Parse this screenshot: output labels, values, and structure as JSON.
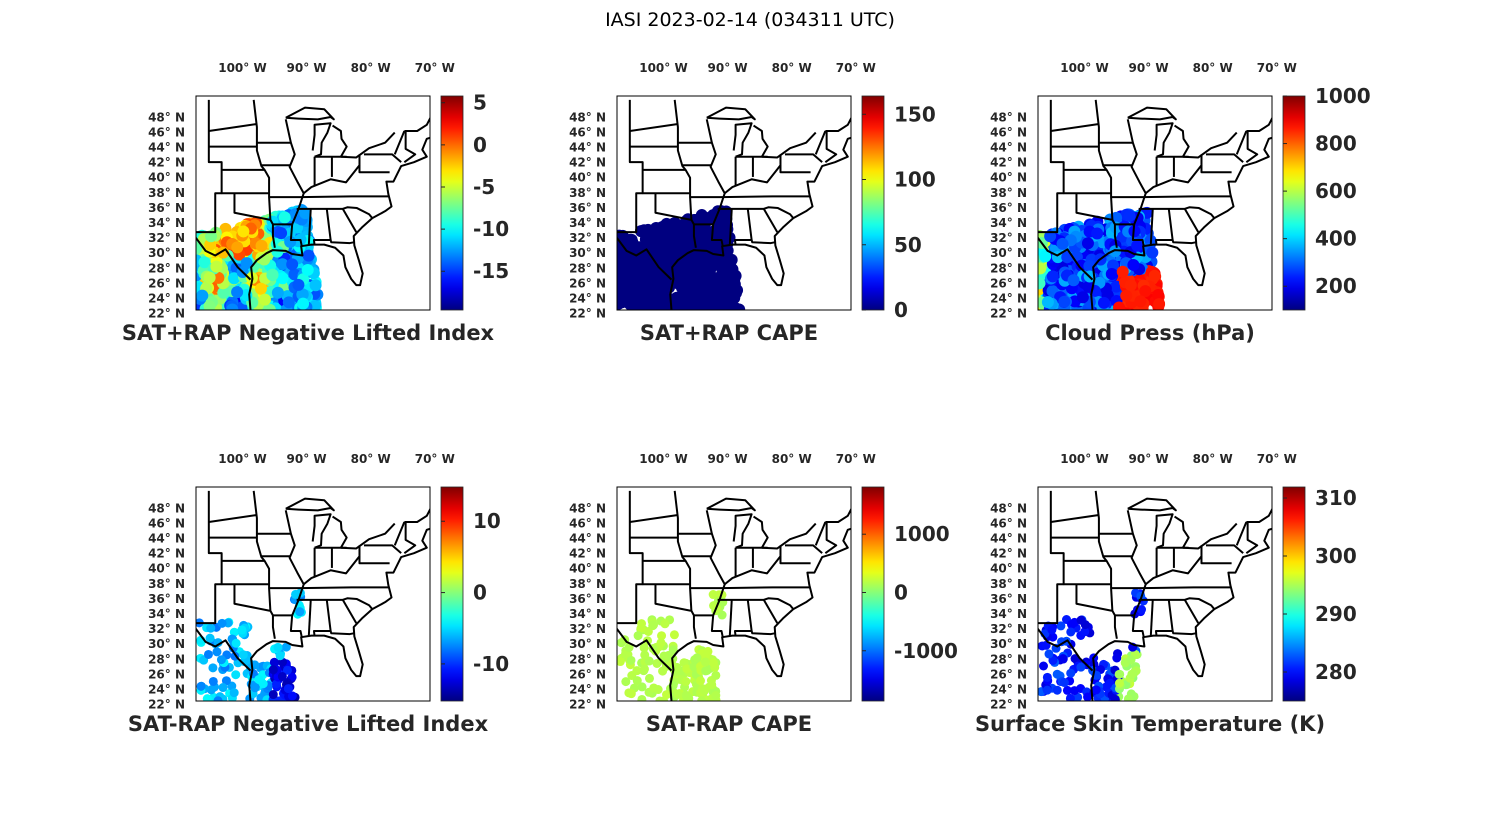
{
  "title": "IASI 2023-02-14 (034311 UTC)",
  "colormap": "jet",
  "map_border_color": "#000000",
  "chart_data": [
    {
      "type": "map",
      "title": "SAT+RAP Negative Lifted Index",
      "lon_ticks": [
        "100° W",
        "90° W",
        "80° W",
        "70° W"
      ],
      "lat_ticks": [
        "48° N",
        "46° N",
        "44° N",
        "42° N",
        "40° N",
        "38° N",
        "36° N",
        "34° N",
        "32° N",
        "30° N",
        "28° N",
        "26° N",
        "24° N",
        "22° N"
      ],
      "colorbar": {
        "ticks": [
          5,
          0,
          -5,
          -10,
          -15
        ],
        "range": [
          -19.6,
          5.8
        ]
      }
    },
    {
      "type": "map",
      "title": "SAT+RAP CAPE",
      "lon_ticks": [
        "100° W",
        "90° W",
        "80° W",
        "70° W"
      ],
      "lat_ticks": [
        "48° N",
        "46° N",
        "44° N",
        "42° N",
        "40° N",
        "38° N",
        "36° N",
        "34° N",
        "32° N",
        "30° N",
        "28° N",
        "26° N",
        "24° N",
        "22° N"
      ],
      "colorbar": {
        "ticks": [
          150,
          100,
          50,
          0
        ],
        "range": [
          0,
          164
        ]
      }
    },
    {
      "type": "map",
      "title": "Cloud Press (hPa)",
      "lon_ticks": [
        "100° W",
        "90° W",
        "80° W",
        "70° W"
      ],
      "lat_ticks": [
        "48° N",
        "46° N",
        "44° N",
        "42° N",
        "40° N",
        "38° N",
        "36° N",
        "34° N",
        "32° N",
        "30° N",
        "28° N",
        "26° N",
        "24° N",
        "22° N"
      ],
      "colorbar": {
        "ticks": [
          1000,
          800,
          600,
          400,
          200
        ],
        "range": [
          100,
          1000
        ]
      }
    },
    {
      "type": "map",
      "title": "SAT-RAP Negative Lifted Index",
      "lon_ticks": [
        "100° W",
        "90° W",
        "80° W",
        "70° W"
      ],
      "lat_ticks": [
        "48° N",
        "46° N",
        "44° N",
        "42° N",
        "40° N",
        "38° N",
        "36° N",
        "34° N",
        "32° N",
        "30° N",
        "28° N",
        "26° N",
        "24° N",
        "22° N"
      ],
      "colorbar": {
        "ticks": [
          10,
          0,
          -10
        ],
        "range": [
          -15.2,
          14.8
        ]
      }
    },
    {
      "type": "map",
      "title": "SAT-RAP CAPE",
      "lon_ticks": [
        "100° W",
        "90° W",
        "80° W",
        "70° W"
      ],
      "lat_ticks": [
        "48° N",
        "46° N",
        "44° N",
        "42° N",
        "40° N",
        "38° N",
        "36° N",
        "34° N",
        "32° N",
        "30° N",
        "28° N",
        "26° N",
        "24° N",
        "22° N"
      ],
      "colorbar": {
        "ticks": [
          1000,
          0,
          -1000
        ],
        "range": [
          -1862,
          1810
        ]
      }
    },
    {
      "type": "map",
      "title": "Surface Skin Temperature (K)",
      "lon_ticks": [
        "100° W",
        "90° W",
        "80° W",
        "70° W"
      ],
      "lat_ticks": [
        "48° N",
        "46° N",
        "44° N",
        "42° N",
        "40° N",
        "38° N",
        "36° N",
        "34° N",
        "32° N",
        "30° N",
        "28° N",
        "26° N",
        "24° N",
        "22° N"
      ],
      "colorbar": {
        "ticks": [
          310,
          300,
          290,
          280
        ],
        "range": [
          275,
          311.9
        ]
      }
    }
  ]
}
